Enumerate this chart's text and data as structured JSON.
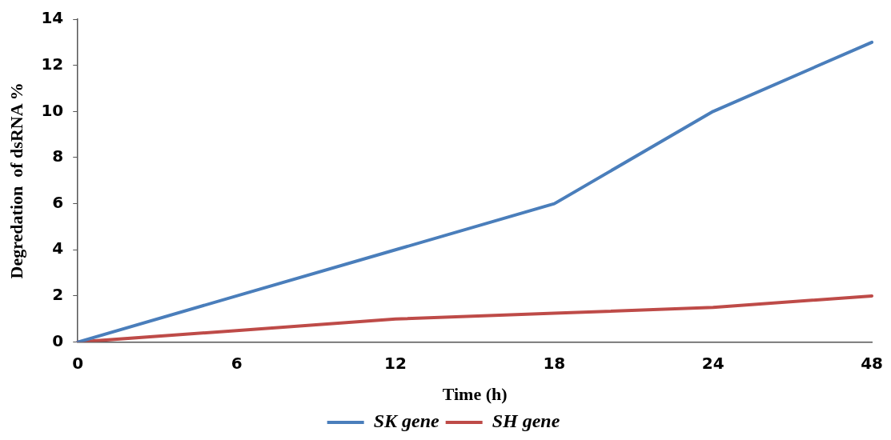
{
  "chart_data": {
    "type": "line",
    "xlabel": "Time (h)",
    "ylabel": "Degredation  of dsRNA %",
    "categories": [
      "0",
      "6",
      "12",
      "18",
      "24",
      "48"
    ],
    "series": [
      {
        "name": "SK gene",
        "color": "#4a7ebb",
        "values": [
          0,
          2,
          4,
          6,
          10,
          13
        ]
      },
      {
        "name": "SH gene",
        "color": "#be4b48",
        "values": [
          0,
          0.5,
          1,
          1.25,
          1.5,
          2
        ]
      }
    ],
    "ylim": [
      0,
      14
    ],
    "yticks": [
      0,
      2,
      4,
      6,
      8,
      10,
      12,
      14
    ],
    "grid": false,
    "legend": "bottom",
    "marker": "none",
    "line_style": "solid"
  }
}
